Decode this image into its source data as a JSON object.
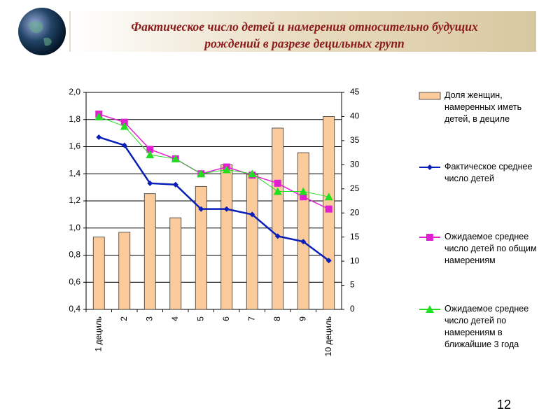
{
  "chart_data": {
    "type": "combo",
    "title": "Фактическое число детей и намерения относительно будущих рождений в разрезе децильных групп",
    "categories": [
      "1 дециль",
      "2",
      "3",
      "4",
      "5",
      "6",
      "7",
      "8",
      "9",
      "10 дециль"
    ],
    "ylim": [
      0.4,
      2.0
    ],
    "yticks": [
      {
        "value": 0.4,
        "label": "0,4"
      },
      {
        "value": 0.6,
        "label": "0,6"
      },
      {
        "value": 0.8,
        "label": "0,8"
      },
      {
        "value": 1.0,
        "label": "1,0"
      },
      {
        "value": 1.2,
        "label": "1,2"
      },
      {
        "value": 1.4,
        "label": "1,4"
      },
      {
        "value": 1.6,
        "label": "1,6"
      },
      {
        "value": 1.8,
        "label": "1,8"
      },
      {
        "value": 2.0,
        "label": "2,0"
      }
    ],
    "y2lim": [
      0,
      45
    ],
    "y2ticks": [
      0,
      5,
      10,
      15,
      20,
      25,
      30,
      35,
      40,
      45
    ],
    "grid": true,
    "series": [
      {
        "name": "Доля женщин, намеренных иметь детей, в дециле",
        "type": "bar",
        "axis": "y2",
        "color": "#fbcb9b",
        "values": [
          15,
          16,
          24,
          19,
          25.5,
          30,
          28,
          37.6,
          32.5,
          40
        ]
      },
      {
        "name": "Фактическое среднее число детей",
        "type": "line",
        "marker": "diamond",
        "color": "#0a1fb8",
        "values": [
          1.67,
          1.61,
          1.33,
          1.32,
          1.14,
          1.14,
          1.1,
          0.94,
          0.9,
          0.76
        ]
      },
      {
        "name": "Ожидаемое среднее число детей по общим намерениям",
        "type": "line",
        "marker": "square",
        "color": "#e020d0",
        "values": [
          1.84,
          1.78,
          1.58,
          1.51,
          1.4,
          1.45,
          1.39,
          1.33,
          1.23,
          1.14
        ]
      },
      {
        "name": "Ожидаемое среднее число детей по намерениям в ближайшие 3 года",
        "type": "line",
        "marker": "triangle",
        "color": "#22dd22",
        "values": [
          1.82,
          1.75,
          1.54,
          1.51,
          1.4,
          1.43,
          1.4,
          1.27,
          1.27,
          1.23
        ]
      }
    ]
  },
  "page_number": "12"
}
